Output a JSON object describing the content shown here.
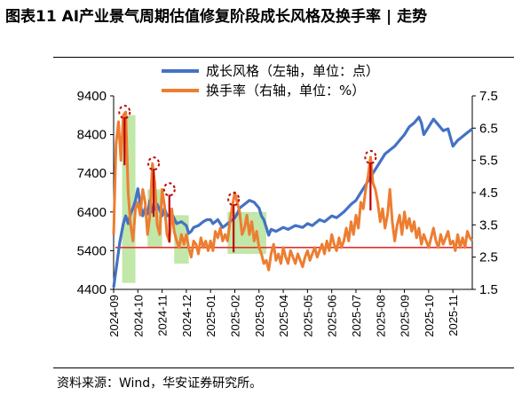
{
  "title": "图表11 AI产业景气周期估值修复阶段成长风格及换手率 | 走势",
  "source": "资料来源：Wind，华安证券研究所。",
  "colors": {
    "growth": "#4472C4",
    "turnover": "#ED7D31",
    "highlight": "#B6E39A",
    "refline": "#E0322F",
    "marker": "#C00000"
  },
  "chart_data": {
    "type": "line",
    "y_left": {
      "ticks": [
        "9400",
        "8400",
        "7400",
        "6400",
        "5400",
        "4400"
      ],
      "range": [
        4400,
        9400
      ]
    },
    "y_right": {
      "ticks": [
        "7.5",
        "6.5",
        "5.5",
        "4.5",
        "3.5",
        "2.5",
        "1.5"
      ],
      "range": [
        1.5,
        7.5
      ]
    },
    "x_ticks": [
      "2024-09",
      "2024-10",
      "2024-11",
      "2024-12",
      "2025-01",
      "2025-02",
      "2025-03",
      "2025-04",
      "2025-05",
      "2025-06",
      "2025-07",
      "2025-08",
      "2025-09",
      "2025-10",
      "2025-11"
    ],
    "x_range": [
      0,
      14.8
    ],
    "reference_line_right": 2.8,
    "series": [
      {
        "name": "成长风格（左轴，单位：点）",
        "axis": "left",
        "points": [
          [
            0,
            4450
          ],
          [
            0.1,
            4900
          ],
          [
            0.25,
            5600
          ],
          [
            0.4,
            6100
          ],
          [
            0.5,
            6300
          ],
          [
            0.6,
            6100
          ],
          [
            0.7,
            6350
          ],
          [
            0.8,
            6500
          ],
          [
            0.9,
            6700
          ],
          [
            1.0,
            7000
          ],
          [
            1.1,
            6600
          ],
          [
            1.2,
            6300
          ],
          [
            1.3,
            6500
          ],
          [
            1.4,
            6350
          ],
          [
            1.5,
            6700
          ],
          [
            1.6,
            6400
          ],
          [
            1.7,
            6500
          ],
          [
            1.8,
            6600
          ],
          [
            1.9,
            6450
          ],
          [
            2.0,
            6300
          ],
          [
            2.1,
            6500
          ],
          [
            2.2,
            6300
          ],
          [
            2.4,
            6350
          ],
          [
            2.6,
            6100
          ],
          [
            2.8,
            6150
          ],
          [
            3.0,
            6050
          ],
          [
            3.1,
            5850
          ],
          [
            3.2,
            5900
          ],
          [
            3.3,
            6000
          ],
          [
            3.5,
            6050
          ],
          [
            3.7,
            6150
          ],
          [
            3.85,
            6200
          ],
          [
            4.0,
            6200
          ],
          [
            4.1,
            6100
          ],
          [
            4.3,
            6200
          ],
          [
            4.5,
            6000
          ],
          [
            4.6,
            6050
          ],
          [
            4.8,
            6150
          ],
          [
            5.0,
            6250
          ],
          [
            5.1,
            6350
          ],
          [
            5.2,
            6500
          ],
          [
            5.4,
            6600
          ],
          [
            5.6,
            6700
          ],
          [
            5.8,
            6650
          ],
          [
            6.0,
            6500
          ],
          [
            6.1,
            6300
          ],
          [
            6.2,
            6200
          ],
          [
            6.3,
            6000
          ],
          [
            6.4,
            5800
          ],
          [
            6.5,
            5950
          ],
          [
            6.7,
            5900
          ],
          [
            7.0,
            6000
          ],
          [
            7.2,
            5950
          ],
          [
            7.5,
            6050
          ],
          [
            7.8,
            6000
          ],
          [
            8.0,
            6100
          ],
          [
            8.2,
            6050
          ],
          [
            8.5,
            6200
          ],
          [
            8.7,
            6150
          ],
          [
            9.0,
            6300
          ],
          [
            9.2,
            6250
          ],
          [
            9.5,
            6400
          ],
          [
            9.8,
            6600
          ],
          [
            10.0,
            6700
          ],
          [
            10.2,
            6900
          ],
          [
            10.4,
            7100
          ],
          [
            10.6,
            7300
          ],
          [
            10.8,
            7500
          ],
          [
            11.0,
            7700
          ],
          [
            11.2,
            7900
          ],
          [
            11.4,
            8000
          ],
          [
            11.6,
            8100
          ],
          [
            11.8,
            8250
          ],
          [
            12.0,
            8400
          ],
          [
            12.2,
            8600
          ],
          [
            12.4,
            8700
          ],
          [
            12.6,
            8850
          ],
          [
            12.7,
            8700
          ],
          [
            12.8,
            8400
          ],
          [
            13.0,
            8600
          ],
          [
            13.2,
            8800
          ],
          [
            13.4,
            8650
          ],
          [
            13.6,
            8500
          ],
          [
            13.8,
            8550
          ],
          [
            14.0,
            8100
          ],
          [
            14.2,
            8250
          ],
          [
            14.4,
            8350
          ],
          [
            14.6,
            8450
          ],
          [
            14.8,
            8550
          ]
        ]
      },
      {
        "name": "换手率（右轴，单位：%）",
        "axis": "right",
        "points": [
          [
            0,
            3.2
          ],
          [
            0.1,
            6.0
          ],
          [
            0.2,
            6.7
          ],
          [
            0.3,
            5.5
          ],
          [
            0.4,
            6.9
          ],
          [
            0.5,
            7.0
          ],
          [
            0.6,
            4.5
          ],
          [
            0.7,
            3.5
          ],
          [
            0.8,
            3.0
          ],
          [
            0.9,
            4.0
          ],
          [
            1.0,
            4.2
          ],
          [
            1.1,
            3.8
          ],
          [
            1.2,
            4.6
          ],
          [
            1.3,
            4.2
          ],
          [
            1.4,
            3.2
          ],
          [
            1.5,
            3.8
          ],
          [
            1.6,
            5.4
          ],
          [
            1.7,
            4.8
          ],
          [
            1.8,
            3.5
          ],
          [
            1.9,
            3.2
          ],
          [
            2.0,
            4.6
          ],
          [
            2.1,
            4.1
          ],
          [
            2.2,
            3.2
          ],
          [
            2.3,
            3.0
          ],
          [
            2.4,
            4.0
          ],
          [
            2.5,
            3.3
          ],
          [
            2.6,
            3.0
          ],
          [
            2.7,
            2.8
          ],
          [
            2.8,
            3.2
          ],
          [
            2.9,
            2.9
          ],
          [
            3.0,
            3.2
          ],
          [
            3.1,
            2.8
          ],
          [
            3.2,
            2.5
          ],
          [
            3.3,
            3.0
          ],
          [
            3.4,
            2.9
          ],
          [
            3.5,
            2.6
          ],
          [
            3.6,
            3.1
          ],
          [
            3.7,
            2.8
          ],
          [
            3.8,
            3.0
          ],
          [
            3.9,
            2.7
          ],
          [
            4.0,
            3.0
          ],
          [
            4.1,
            2.7
          ],
          [
            4.2,
            3.3
          ],
          [
            4.3,
            3.1
          ],
          [
            4.4,
            3.4
          ],
          [
            4.5,
            3.0
          ],
          [
            4.6,
            3.2
          ],
          [
            4.7,
            3.0
          ],
          [
            4.8,
            3.6
          ],
          [
            4.9,
            4.1
          ],
          [
            5.0,
            4.5
          ],
          [
            5.1,
            4.2
          ],
          [
            5.2,
            3.9
          ],
          [
            5.3,
            3.2
          ],
          [
            5.4,
            3.4
          ],
          [
            5.5,
            3.8
          ],
          [
            5.6,
            3.2
          ],
          [
            5.7,
            3.6
          ],
          [
            5.8,
            3.0
          ],
          [
            5.9,
            3.3
          ],
          [
            6.0,
            2.8
          ],
          [
            6.1,
            2.6
          ],
          [
            6.2,
            2.3
          ],
          [
            6.3,
            2.4
          ],
          [
            6.4,
            2.1
          ],
          [
            6.5,
            2.6
          ],
          [
            6.6,
            2.9
          ],
          [
            6.7,
            2.4
          ],
          [
            6.8,
            2.6
          ],
          [
            6.9,
            2.3
          ],
          [
            7.0,
            2.8
          ],
          [
            7.1,
            2.5
          ],
          [
            7.2,
            2.3
          ],
          [
            7.3,
            2.7
          ],
          [
            7.4,
            2.5
          ],
          [
            7.5,
            2.3
          ],
          [
            7.6,
            2.6
          ],
          [
            7.7,
            2.4
          ],
          [
            7.8,
            2.2
          ],
          [
            7.9,
            2.5
          ],
          [
            8.0,
            2.7
          ],
          [
            8.1,
            2.4
          ],
          [
            8.2,
            2.6
          ],
          [
            8.3,
            2.8
          ],
          [
            8.4,
            2.5
          ],
          [
            8.5,
            2.7
          ],
          [
            8.6,
            2.9
          ],
          [
            8.7,
            2.6
          ],
          [
            8.8,
            3.0
          ],
          [
            8.9,
            2.7
          ],
          [
            9.0,
            3.2
          ],
          [
            9.1,
            2.9
          ],
          [
            9.2,
            2.7
          ],
          [
            9.3,
            3.1
          ],
          [
            9.4,
            2.8
          ],
          [
            9.5,
            3.0
          ],
          [
            9.6,
            3.4
          ],
          [
            9.7,
            3.0
          ],
          [
            9.8,
            3.6
          ],
          [
            9.9,
            3.2
          ],
          [
            10.0,
            3.8
          ],
          [
            10.1,
            3.4
          ],
          [
            10.2,
            4.2
          ],
          [
            10.3,
            4.0
          ],
          [
            10.4,
            4.6
          ],
          [
            10.5,
            5.0
          ],
          [
            10.6,
            5.6
          ],
          [
            10.7,
            4.8
          ],
          [
            10.8,
            4.6
          ],
          [
            10.9,
            4.2
          ],
          [
            11.0,
            3.6
          ],
          [
            11.1,
            4.0
          ],
          [
            11.2,
            3.4
          ],
          [
            11.3,
            3.8
          ],
          [
            11.4,
            4.6
          ],
          [
            11.5,
            3.6
          ],
          [
            11.6,
            3.0
          ],
          [
            11.7,
            3.5
          ],
          [
            11.8,
            3.8
          ],
          [
            11.9,
            3.2
          ],
          [
            12.0,
            3.9
          ],
          [
            12.1,
            3.4
          ],
          [
            12.2,
            3.7
          ],
          [
            12.3,
            3.3
          ],
          [
            12.4,
            3.6
          ],
          [
            12.5,
            3.1
          ],
          [
            12.6,
            3.4
          ],
          [
            12.7,
            2.9
          ],
          [
            12.8,
            3.2
          ],
          [
            12.9,
            3.0
          ],
          [
            13.0,
            2.8
          ],
          [
            13.1,
            3.1
          ],
          [
            13.2,
            3.4
          ],
          [
            13.3,
            3.0
          ],
          [
            13.4,
            2.8
          ],
          [
            13.5,
            3.2
          ],
          [
            13.6,
            2.9
          ],
          [
            13.7,
            3.1
          ],
          [
            13.8,
            3.3
          ],
          [
            13.9,
            2.9
          ],
          [
            14.0,
            3.0
          ],
          [
            14.1,
            2.7
          ],
          [
            14.2,
            3.2
          ],
          [
            14.3,
            2.8
          ],
          [
            14.4,
            3.1
          ],
          [
            14.5,
            2.8
          ],
          [
            14.6,
            3.3
          ],
          [
            14.7,
            3.1
          ],
          [
            14.8,
            3.0
          ]
        ]
      }
    ],
    "highlight_ranges_x": [
      [
        0.35,
        0.9
      ],
      [
        1.4,
        2.0
      ],
      [
        2.5,
        3.1
      ],
      [
        4.7,
        6.3
      ]
    ],
    "peak_markers": [
      {
        "x": 0.45,
        "y_right": 7.0
      },
      {
        "x": 1.65,
        "y_right": 5.4
      },
      {
        "x": 2.3,
        "y_right": 4.6
      },
      {
        "x": 4.95,
        "y_right": 4.3
      },
      {
        "x": 10.6,
        "y_right": 5.6
      }
    ]
  }
}
